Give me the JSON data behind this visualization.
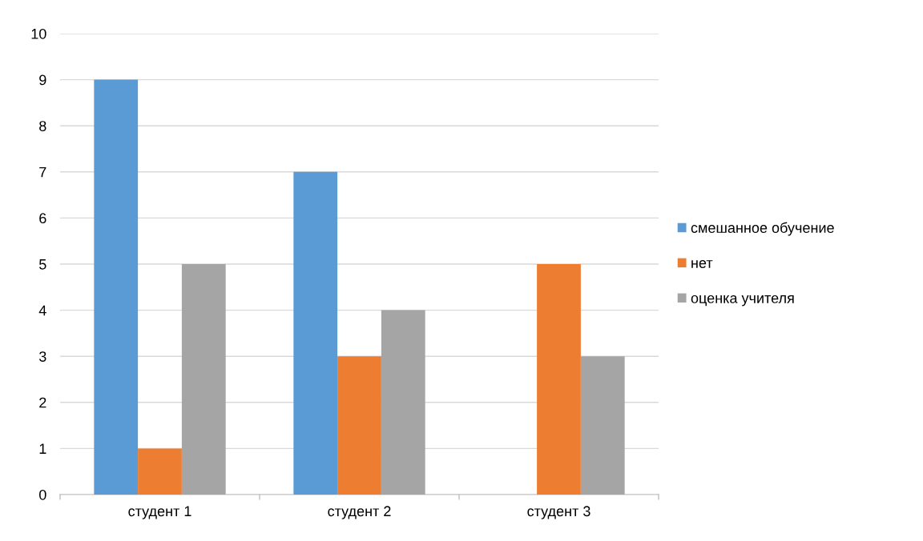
{
  "chart_data": {
    "type": "bar",
    "categories": [
      "студент 1",
      "студент 2",
      "студент 3"
    ],
    "series": [
      {
        "name": "смешанное обучение",
        "color": "#5b9bd5",
        "values": [
          9,
          7,
          0
        ]
      },
      {
        "name": "нет",
        "color": "#ed7d31",
        "values": [
          1,
          3,
          5
        ]
      },
      {
        "name": "оценка учителя",
        "color": "#a5a5a5",
        "values": [
          5,
          4,
          3
        ]
      }
    ],
    "ylim": [
      0,
      10
    ],
    "yticks": [
      0,
      1,
      2,
      3,
      4,
      5,
      6,
      7,
      8,
      9,
      10
    ],
    "grid": "y",
    "legend": "right"
  }
}
